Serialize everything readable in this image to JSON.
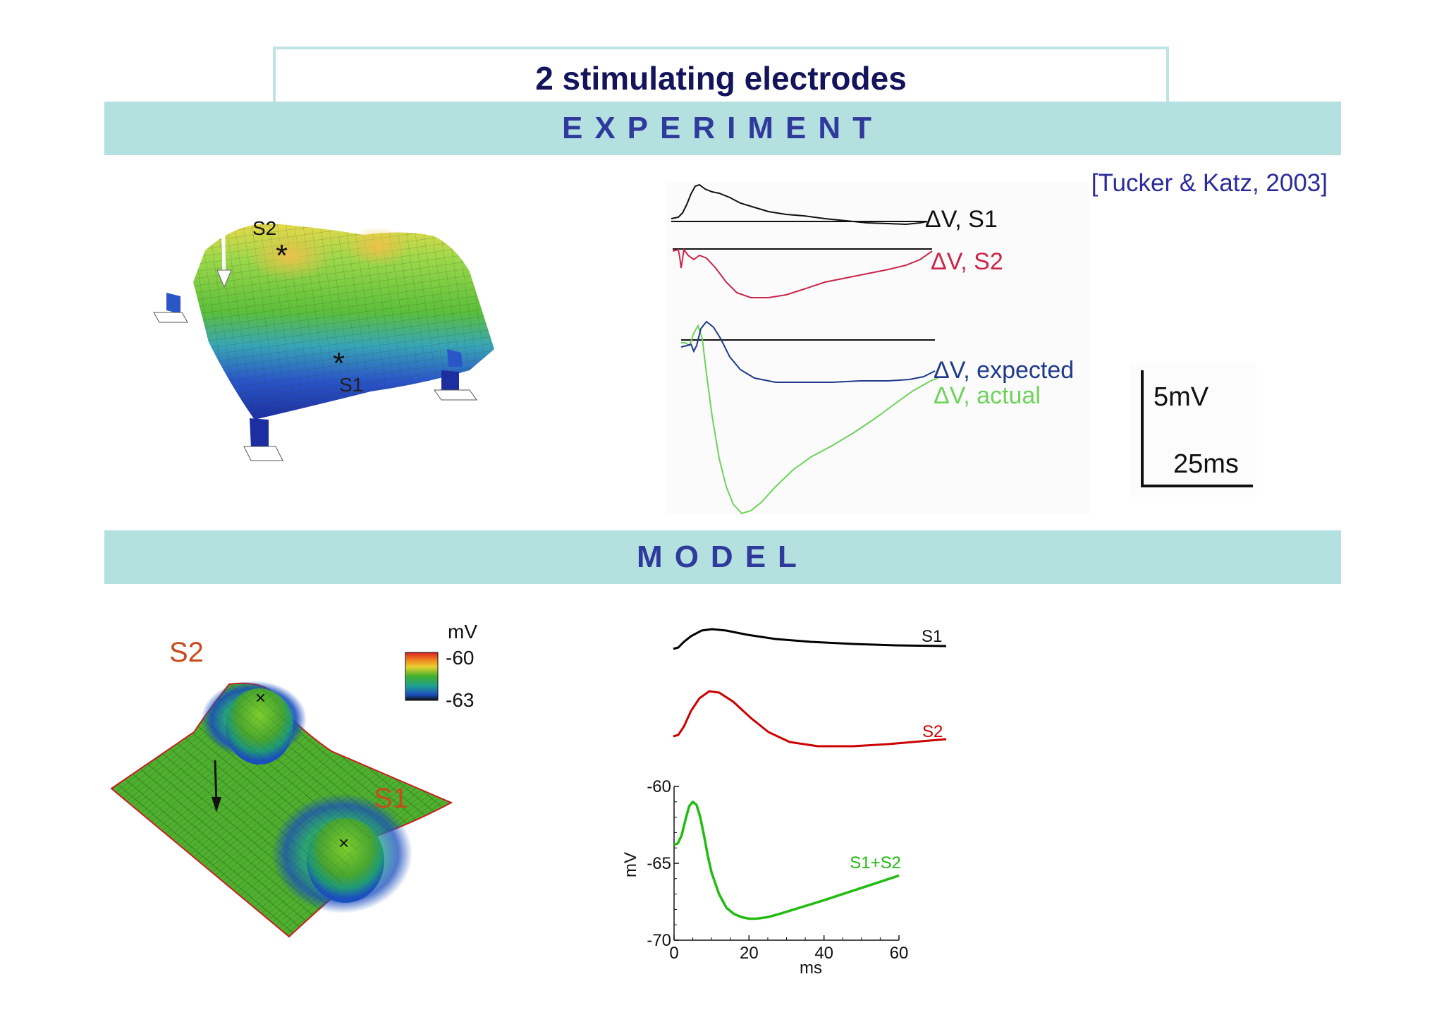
{
  "title": "2 stimulating electrodes",
  "sections": {
    "experiment": "EXPERIMENT",
    "model": "MODEL"
  },
  "citation": "[Tucker & Katz, 2003]",
  "experiment": {
    "surface_labels": {
      "s2": "S2",
      "s1": "S1"
    },
    "traces": [
      {
        "label": "ΔV, S1",
        "color": "#1a1a1a"
      },
      {
        "label": "ΔV, S2",
        "color": "#c8264a"
      },
      {
        "label": "ΔV, expected",
        "color": "#1e3a8a"
      },
      {
        "label": "ΔV, actual",
        "color": "#6dd35a"
      }
    ],
    "scale_bar": {
      "voltage": "5mV",
      "time": "25ms"
    }
  },
  "model": {
    "surface_labels": {
      "s2": "S2",
      "s1": "S1"
    },
    "colorbar": {
      "unit": "mV",
      "max": "-60",
      "min": "-63"
    },
    "traces": [
      {
        "label": "S1",
        "color": "#000000"
      },
      {
        "label": "S2",
        "color": "#cc0000"
      },
      {
        "label": "S1+S2",
        "color": "#22bb11"
      }
    ]
  },
  "chart_data": {
    "type": "line",
    "title": "",
    "xlabel": "ms",
    "ylabel": "mV",
    "xlim": [
      0,
      60
    ],
    "ylim": [
      -70,
      -60
    ],
    "xticks": [
      "0",
      "20",
      "40",
      "60"
    ],
    "yticks": [
      "-60",
      "-65",
      "-70"
    ],
    "series": [
      {
        "name": "S1+S2",
        "color": "#22bb11",
        "x": [
          0,
          1,
          2,
          3,
          4,
          5,
          6,
          7,
          8,
          9,
          10,
          12,
          14,
          16,
          18,
          20,
          22,
          25,
          28,
          32,
          36,
          40,
          45,
          50,
          55,
          60
        ],
        "y": [
          -63.8,
          -63.7,
          -63.2,
          -62.2,
          -61.3,
          -61.0,
          -61.2,
          -62.0,
          -63.2,
          -64.5,
          -65.6,
          -67.0,
          -67.9,
          -68.3,
          -68.5,
          -68.6,
          -68.6,
          -68.5,
          -68.3,
          -68.0,
          -67.7,
          -67.4,
          -67.0,
          -66.6,
          -66.2,
          -65.8
        ]
      }
    ]
  }
}
